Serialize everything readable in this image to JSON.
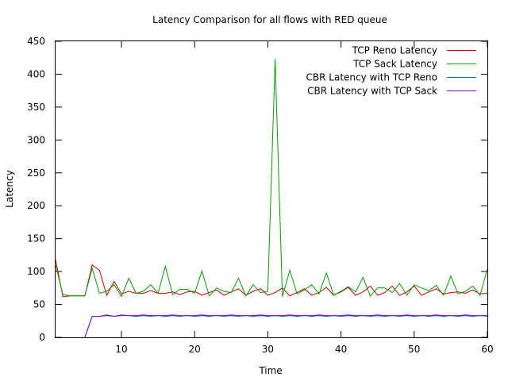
{
  "chart_data": {
    "type": "line",
    "title": "Latency Comparison for all flows with RED queue",
    "xlabel": "Time",
    "ylabel": "Latency",
    "xlim": [
      1,
      60
    ],
    "ylim": [
      0,
      450
    ],
    "x_ticks": [
      10,
      20,
      30,
      40,
      50,
      60
    ],
    "y_ticks": [
      0,
      50,
      100,
      150,
      200,
      250,
      300,
      350,
      400,
      450
    ],
    "grid": false,
    "legend_position": "top-right",
    "x": [
      1,
      2,
      3,
      4,
      5,
      6,
      7,
      8,
      9,
      10,
      11,
      12,
      13,
      14,
      15,
      16,
      17,
      18,
      19,
      20,
      21,
      22,
      23,
      24,
      25,
      26,
      27,
      28,
      29,
      30,
      31,
      32,
      33,
      34,
      35,
      36,
      37,
      38,
      39,
      40,
      41,
      42,
      43,
      44,
      45,
      46,
      47,
      48,
      49,
      50,
      51,
      52,
      53,
      54,
      55,
      56,
      57,
      58,
      59,
      60
    ],
    "series": [
      {
        "name": "TCP Reno Latency",
        "color": "#cc0000",
        "values": [
          118,
          62,
          63,
          63,
          63,
          110,
          102,
          64,
          85,
          66,
          70,
          67,
          67,
          71,
          67,
          67,
          69,
          65,
          69,
          70,
          64,
          68,
          72,
          64,
          69,
          74,
          64,
          70,
          74,
          64,
          68,
          75,
          63,
          68,
          74,
          64,
          68,
          76,
          64,
          69,
          76,
          64,
          69,
          78,
          64,
          68,
          78,
          64,
          69,
          78,
          64,
          69,
          74,
          66,
          68,
          69,
          67,
          72,
          66,
          67
        ]
      },
      {
        "name": "TCP Sack Latency",
        "color": "#00a000",
        "values": [
          110,
          65,
          63,
          63,
          63,
          105,
          67,
          70,
          80,
          62,
          90,
          67,
          70,
          80,
          67,
          108,
          65,
          73,
          73,
          67,
          101,
          63,
          75,
          70,
          68,
          90,
          63,
          80,
          68,
          70,
          423,
          62,
          102,
          66,
          72,
          80,
          66,
          98,
          64,
          70,
          77,
          69,
          91,
          63,
          75,
          75,
          68,
          82,
          64,
          80,
          75,
          71,
          79,
          64,
          93,
          66,
          70,
          78,
          64,
          104
        ]
      },
      {
        "name": "CBR Latency with TCP Reno",
        "color": "#0060c0",
        "values": [
          null,
          null,
          null,
          null,
          0,
          32,
          32,
          33,
          32,
          33,
          33,
          32,
          33,
          32,
          33,
          32,
          33,
          32,
          33,
          32,
          33,
          32,
          33,
          32,
          33,
          32,
          33,
          32,
          33,
          32,
          33,
          32,
          33,
          32,
          33,
          32,
          33,
          32,
          33,
          32,
          33,
          32,
          33,
          32,
          33,
          32,
          33,
          32,
          33,
          32,
          33,
          32,
          33,
          32,
          33,
          32,
          33,
          32,
          33,
          32
        ]
      },
      {
        "name": "CBR Latency with TCP Sack",
        "color": "#8a00c8",
        "values": [
          null,
          null,
          null,
          null,
          0,
          32,
          32,
          34,
          32,
          34,
          33,
          33,
          34,
          33,
          33,
          33,
          34,
          33,
          33,
          33,
          34,
          33,
          33,
          33,
          34,
          33,
          33,
          33,
          34,
          33,
          33,
          33,
          34,
          33,
          33,
          33,
          34,
          33,
          33,
          33,
          34,
          33,
          33,
          33,
          34,
          33,
          33,
          33,
          34,
          33,
          33,
          33,
          34,
          33,
          33,
          33,
          34,
          33,
          33,
          33
        ]
      }
    ]
  }
}
